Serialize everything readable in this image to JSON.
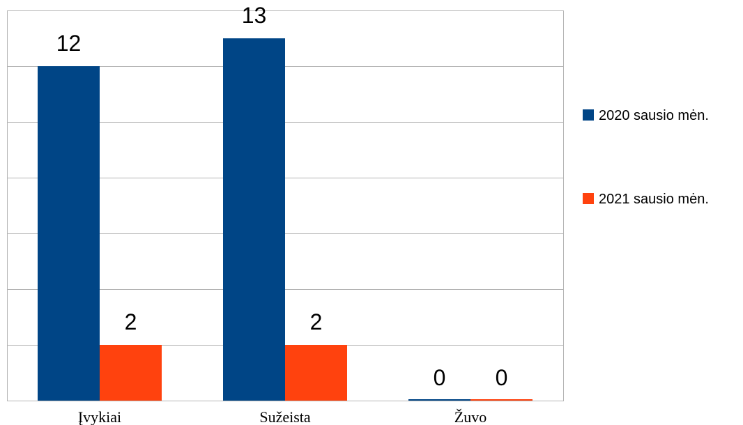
{
  "chart_data": {
    "type": "bar",
    "title": "",
    "xlabel": "",
    "ylabel": "",
    "categories": [
      "Įvykiai",
      "Sužeista",
      "Žuvo"
    ],
    "series": [
      {
        "name": "2020 sausio mėn.",
        "values": [
          12,
          13,
          0
        ],
        "color": "#004586"
      },
      {
        "name": "2021 sausio mėn.",
        "values": [
          2,
          2,
          0
        ],
        "color": "#ff420e"
      }
    ],
    "ylim": [
      0,
      14
    ],
    "y_grid_step": 2,
    "grid": true,
    "legend_position": "right",
    "data_labels": true
  }
}
